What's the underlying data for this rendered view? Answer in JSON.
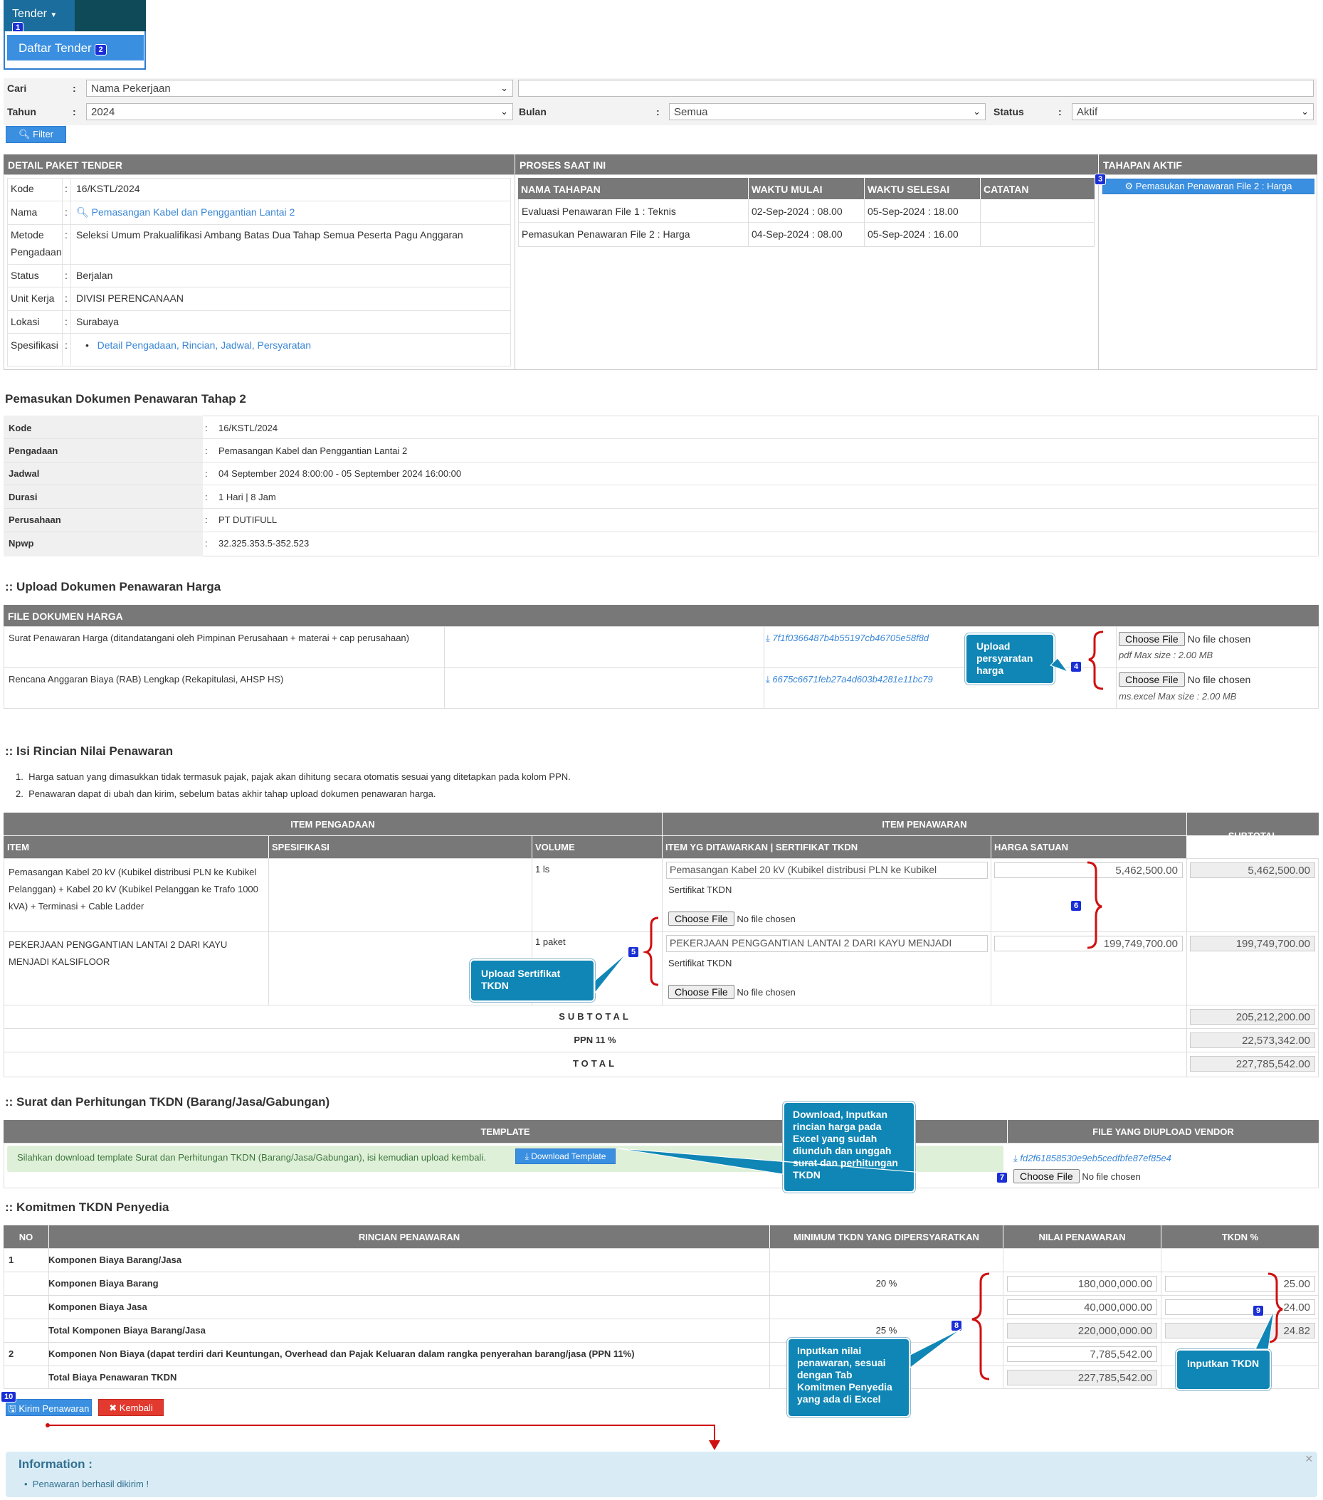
{
  "nav": {
    "tender_label": "Tender",
    "tender_badge": "1",
    "daftar_label": "Daftar Tender",
    "daftar_badge": "2"
  },
  "filter": {
    "cari_label": "Cari",
    "cari_select": "Nama Pekerjaan",
    "cari_input": "",
    "tahun_label": "Tahun",
    "tahun_value": "2024",
    "bulan_label": "Bulan",
    "bulan_value": "Semua",
    "status_label": "Status",
    "status_value": "Aktif",
    "filter_button": "Filter",
    "colon": ":"
  },
  "detail": {
    "head_detail": "DETAIL PAKET TENDER",
    "head_proses": "PROSES SAAT INI",
    "head_tahapan": "TAHAPAN AKTIF",
    "rows": [
      {
        "label": "Kode",
        "value": "16/KSTL/2024"
      },
      {
        "label": "Nama",
        "value": "Pemasangan Kabel dan Penggantian Lantai 2"
      },
      {
        "label": "Metode Pengadaan",
        "value": "Seleksi Umum Prakualifikasi Ambang Batas Dua Tahap Semua Peserta Pagu Anggaran"
      },
      {
        "label": "Status",
        "value": "Berjalan"
      },
      {
        "label": "Unit Kerja",
        "value": "DIVISI PERENCANAAN"
      },
      {
        "label": "Lokasi",
        "value": "Surabaya"
      },
      {
        "label": "Spesifikasi",
        "value": "Detail Pengadaan, Rincian, Jadwal, Persyaratan"
      }
    ],
    "metode_line1": "Metode",
    "metode_line2": "Pengadaan",
    "proses_headers": [
      "NAMA TAHAPAN",
      "WAKTU MULAI",
      "WAKTU SELESAI",
      "CATATAN"
    ],
    "proses_rows": [
      {
        "nama": "Evaluasi Penawaran File 1 : Teknis",
        "mulai": "02-Sep-2024 : 08.00",
        "selesai": "05-Sep-2024 : 18.00",
        "catatan": ""
      },
      {
        "nama": "Pemasukan Penawaran File 2 : Harga",
        "mulai": "04-Sep-2024 : 08.00",
        "selesai": "05-Sep-2024 : 16.00",
        "catatan": ""
      }
    ],
    "tahapan_aktif": "Pemasukan Penawaran File 2 : Harga",
    "tahapan_badge": "3"
  },
  "dokumen": {
    "title": "Pemasukan Dokumen Penawaran Tahap 2",
    "rows": [
      {
        "label": "Kode",
        "value": "16/KSTL/2024"
      },
      {
        "label": "Pengadaan",
        "value": "Pemasangan Kabel dan Penggantian Lantai 2"
      },
      {
        "label": "Jadwal",
        "value": "04 September 2024 8:00:00 - 05 September 2024 16:00:00"
      },
      {
        "label": "Durasi",
        "value": "1 Hari | 8 Jam"
      },
      {
        "label": "Perusahaan",
        "value": "PT DUTIFULL"
      },
      {
        "label": "Npwp",
        "value": "32.325.353.5-352.523"
      }
    ]
  },
  "upload_harga": {
    "title": ":: Upload Dokumen Penawaran Harga",
    "head": "FILE DOKUMEN HARGA",
    "rows": [
      {
        "name": "Surat Penawaran Harga (ditandatangani oleh Pimpinan Perusahaan + materai + cap perusahaan)",
        "file": "7f1f0366487b4b55197cb46705e58f8d",
        "hint": "pdf Max size : 2.00 MB"
      },
      {
        "name": "Rencana Anggaran Biaya (RAB) Lengkap (Rekapitulasi, AHSP HS)",
        "file": "6675c6671feb27a4d603b4281e11bc79",
        "hint": "ms.excel Max size : 2.00 MB"
      }
    ],
    "choose_file": "Choose File",
    "no_file": "No file chosen",
    "callout": "Upload persyaratan harga",
    "badge": "4"
  },
  "rincian": {
    "title": ":: Isi Rincian Nilai Penawaran",
    "notes": [
      "Harga satuan yang dimasukkan tidak termasuk pajak, pajak akan dihitung secara otomatis sesuai yang ditetapkan pada kolom PPN.",
      "Penawaran dapat di ubah dan kirim, sebelum batas akhir tahap upload dokumen penawaran harga."
    ],
    "head_item_pengadaan": "ITEM PENGADAAN",
    "head_item_penawaran": "ITEM PENAWARAN",
    "head_subtotal": "SUBTOTAL",
    "head_item": "ITEM",
    "head_spesifikasi": "SPESIFIKASI",
    "head_volume": "VOLUME",
    "head_item_ditawarkan": "ITEM YG DITAWARKAN | SERTIFIKAT TKDN",
    "head_harga_satuan": "HARGA SATUAN",
    "items": [
      {
        "item": "Pemasangan Kabel 20 kV (Kubikel distribusi PLN ke Kubikel Pelanggan) + Kabel 20 kV (Kubikel Pelanggan ke Trafo 1000 kVA) + Terminasi + Cable Ladder",
        "spesifikasi": "",
        "volume": "1  ls",
        "ditawarkan": "Pemasangan Kabel 20 kV (Kubikel distribusi PLN ke Kubikel",
        "harga": "5,462,500.00",
        "subtotal": "5,462,500.00"
      },
      {
        "item": "PEKERJAAN PENGGANTIAN LANTAI 2 DARI KAYU MENJADI KALSIFLOOR",
        "spesifikasi": "",
        "volume": "1  paket",
        "ditawarkan": "PEKERJAAN PENGGANTIAN LANTAI 2 DARI KAYU MENJADI",
        "harga": "199,749,700.00",
        "subtotal": "199,749,700.00"
      }
    ],
    "sertifikat_label": "Sertifikat TKDN",
    "choose_file": "Choose File",
    "no_file": "No file chosen",
    "subtotal_label": "SUBTOTAL",
    "subtotal_value": "205,212,200.00",
    "ppn_label": "PPN 11 %",
    "ppn_value": "22,573,342.00",
    "total_label": "TOTAL",
    "total_value": "227,785,542.00",
    "callout_tkdn": "Upload Sertifikat TKDN",
    "badge5": "5",
    "badge6": "6"
  },
  "surat": {
    "title": ":: Surat dan Perhitungan TKDN (Barang/Jasa/Gabungan)",
    "head_template": "TEMPLATE",
    "head_file_vendor": "FILE YANG DIUPLOAD VENDOR",
    "message": "Silahkan download template Surat dan Perhitungan TKDN (Barang/Jasa/Gabungan), isi kemudian upload kembali.",
    "download_btn": "Download Template",
    "file": "fd2f61858530e9eb5cedfbfe87ef85e4",
    "choose_file": "Choose File",
    "no_file": "No file chosen",
    "callout": "Download, Inputkan rincian harga pada Excel yang sudah diunduh dan unggah surat dan perhitungan TKDN",
    "badge": "7"
  },
  "komitmen": {
    "title": ":: Komitmen TKDN Penyedia",
    "headers": [
      "NO",
      "RINCIAN PENAWARAN",
      "MINIMUM TKDN YANG DIPERSYARATKAN",
      "NILAI PENAWARAN",
      "TKDN %"
    ],
    "rows": [
      {
        "no": "1",
        "rincian": "Komponen Biaya Barang/Jasa",
        "min": "",
        "nilai": "",
        "tkdn": "",
        "nilai_ro": false,
        "tkdn_ro": false,
        "show_nilai": false,
        "show_tkdn": false
      },
      {
        "no": "",
        "rincian": "Komponen Biaya Barang",
        "min": "20 %",
        "nilai": "180,000,000.00",
        "tkdn": "25.00",
        "nilai_ro": false,
        "tkdn_ro": false,
        "show_nilai": true,
        "show_tkdn": true
      },
      {
        "no": "",
        "rincian": "Komponen Biaya Jasa",
        "min": "",
        "nilai": "40,000,000.00",
        "tkdn": "24.00",
        "nilai_ro": false,
        "tkdn_ro": false,
        "show_nilai": true,
        "show_tkdn": true
      },
      {
        "no": "",
        "rincian": "Total Komponen Biaya Barang/Jasa",
        "min": "25 %",
        "nilai": "220,000,000.00",
        "tkdn": "24.82",
        "nilai_ro": true,
        "tkdn_ro": true,
        "show_nilai": true,
        "show_tkdn": true
      },
      {
        "no": "2",
        "rincian": "Komponen Non Biaya (dapat terdiri dari Keuntungan, Overhead dan Pajak Keluaran dalam rangka penyerahan barang/jasa (PPN 11%)",
        "min": "",
        "nilai": "7,785,542.00",
        "tkdn": "",
        "nilai_ro": false,
        "tkdn_ro": false,
        "show_nilai": true,
        "show_tkdn": false
      },
      {
        "no": "",
        "rincian": "Total Biaya Penawaran TKDN",
        "min": "",
        "nilai": "227,785,542.00",
        "tkdn": "",
        "nilai_ro": true,
        "tkdn_ro": false,
        "show_nilai": true,
        "show_tkdn": false
      }
    ],
    "callout_nilai": "Inputkan nilai penawaran, sesuai dengan Tab Komitmen Penyedia yang ada di Excel",
    "callout_tkdn": "Inputkan TKDN",
    "badge8": "8",
    "badge9": "9"
  },
  "actions": {
    "kirim": "Kirim Penawaran",
    "kembali": "Kembali",
    "badge10": "10"
  },
  "info": {
    "title": "Information :",
    "message": "Penawaran berhasil dikirim !",
    "close": "×"
  },
  "colors": {
    "accent_blue": "#3a8fe0",
    "header_grey": "#787878",
    "callout_teal": "#0f86b5",
    "danger_red": "#e23a2f",
    "brace_red": "#d01010"
  }
}
